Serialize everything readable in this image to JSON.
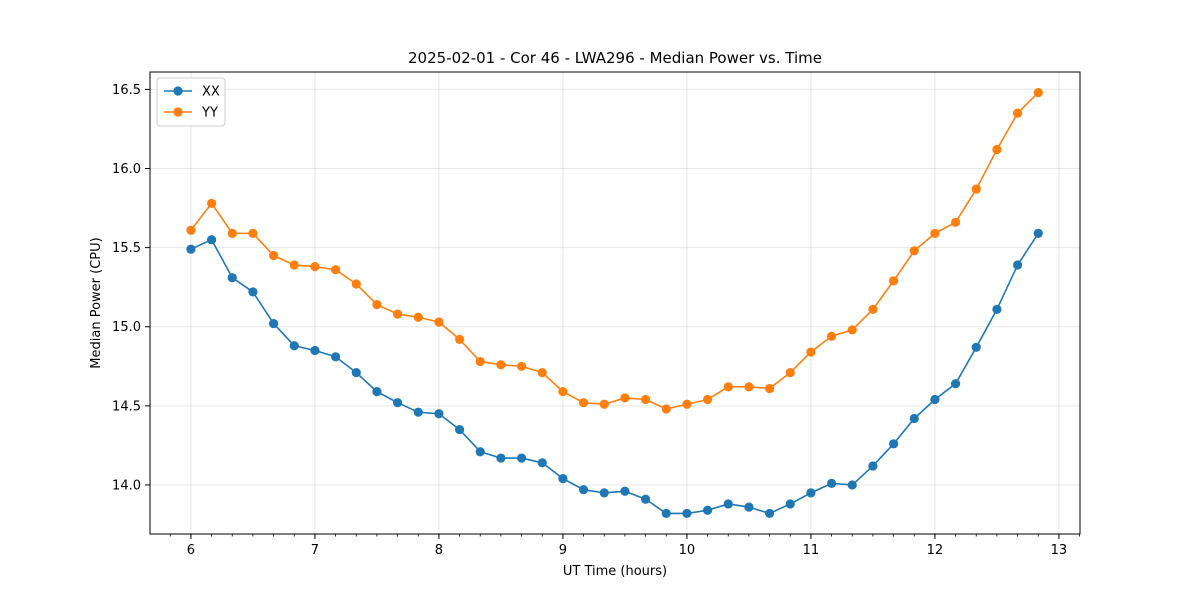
{
  "chart_data": {
    "type": "line",
    "title": "2025-02-01 - Cor 46 - LWA296 - Median Power vs. Time",
    "xlabel": "UT Time (hours)",
    "ylabel": "Median Power (CPU)",
    "xlim": [
      5.67,
      13.17
    ],
    "ylim": [
      13.69,
      16.61
    ],
    "xticks": [
      6,
      7,
      8,
      9,
      10,
      11,
      12,
      13
    ],
    "yticks": [
      14.0,
      14.5,
      15.0,
      15.5,
      16.0,
      16.5
    ],
    "ytick_labels": [
      "14.0",
      "14.5",
      "15.0",
      "15.5",
      "16.0",
      "16.5"
    ],
    "grid": true,
    "legend": "top-left",
    "x": [
      6.0,
      6.1667,
      6.3333,
      6.5,
      6.6667,
      6.8333,
      7.0,
      7.1667,
      7.3333,
      7.5,
      7.6667,
      7.8333,
      8.0,
      8.1667,
      8.3333,
      8.5,
      8.6667,
      8.8333,
      9.0,
      9.1667,
      9.3333,
      9.5,
      9.6667,
      9.8333,
      10.0,
      10.1667,
      10.3333,
      10.5,
      10.6667,
      10.8333,
      11.0,
      11.1667,
      11.3333,
      11.5,
      11.6667,
      11.8333,
      12.0,
      12.1667,
      12.3333,
      12.5,
      12.6667,
      12.8333
    ],
    "series": [
      {
        "name": "XX",
        "color": "#1f77b4",
        "values": [
          15.49,
          15.55,
          15.31,
          15.22,
          15.02,
          14.88,
          14.85,
          14.81,
          14.71,
          14.59,
          14.52,
          14.46,
          14.45,
          14.35,
          14.21,
          14.17,
          14.17,
          14.14,
          14.04,
          13.97,
          13.95,
          13.96,
          13.91,
          13.82,
          13.82,
          13.84,
          13.88,
          13.86,
          13.82,
          13.88,
          13.95,
          14.01,
          14.0,
          14.12,
          14.26,
          14.42,
          14.54,
          14.64,
          14.87,
          15.11,
          15.39,
          15.59
        ]
      },
      {
        "name": "YY",
        "color": "#ff7f0e",
        "values": [
          15.61,
          15.78,
          15.59,
          15.59,
          15.45,
          15.39,
          15.38,
          15.36,
          15.27,
          15.14,
          15.08,
          15.06,
          15.03,
          14.92,
          14.78,
          14.76,
          14.75,
          14.71,
          14.59,
          14.52,
          14.51,
          14.55,
          14.54,
          14.48,
          14.51,
          14.54,
          14.62,
          14.62,
          14.61,
          14.71,
          14.84,
          14.94,
          14.98,
          15.11,
          15.29,
          15.48,
          15.59,
          15.66,
          15.87,
          16.12,
          16.35,
          16.48
        ]
      }
    ]
  }
}
